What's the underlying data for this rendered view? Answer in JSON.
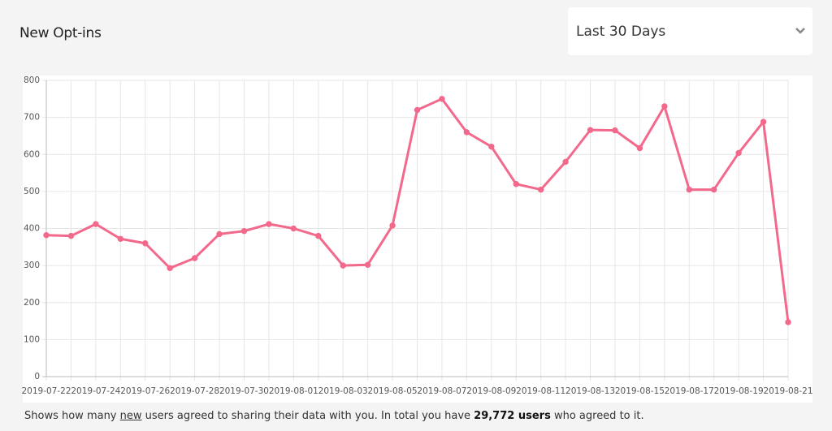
{
  "header": {
    "title": "New Opt-ins",
    "range_select": "Last 30 Days"
  },
  "chart_data": {
    "type": "line",
    "categories": [
      "2019-07-22",
      null,
      "2019-07-24",
      null,
      "2019-07-26",
      null,
      "2019-07-28",
      null,
      "2019-07-30",
      null,
      "2019-08-01",
      null,
      "2019-08-03",
      null,
      "2019-08-05",
      null,
      "2019-08-07",
      null,
      "2019-08-09",
      null,
      "2019-08-11",
      null,
      "2019-08-13",
      null,
      "2019-08-15",
      null,
      "2019-08-17",
      null,
      "2019-08-19",
      null,
      "2019-08-21"
    ],
    "series": [
      {
        "color": "#f2698b",
        "values": [
          382,
          380,
          412,
          372,
          360,
          293,
          320,
          385,
          393,
          412,
          400,
          380,
          300,
          302,
          408,
          720,
          750,
          660,
          621,
          520,
          505,
          580,
          666,
          665,
          617,
          730,
          505,
          505,
          604,
          688,
          147
        ]
      }
    ],
    "ylim": [
      0,
      800
    ],
    "yticks": [
      0,
      100,
      200,
      300,
      400,
      500,
      600,
      700,
      800
    ],
    "grid": true
  },
  "footer": {
    "lead": "Shows how many",
    "emphasis": "new",
    "middle": "users agreed to sharing their data with you. In total you have",
    "total": "29,772 users",
    "tail": "who agreed to it."
  }
}
